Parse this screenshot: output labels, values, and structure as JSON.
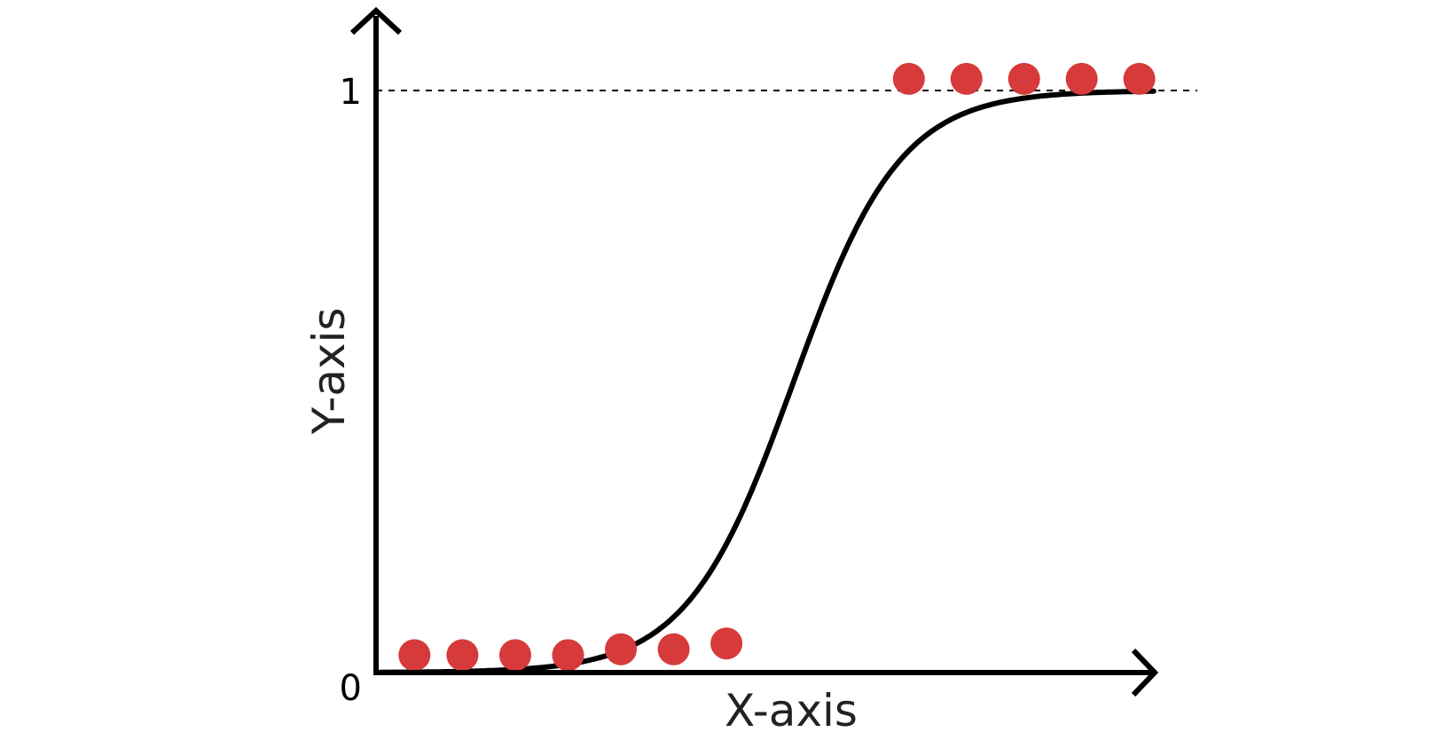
{
  "chart_data": {
    "type": "scatter",
    "title": "",
    "xlabel": "X-axis",
    "ylabel": "Y-axis",
    "xlim": [
      0,
      16
    ],
    "ylim": [
      0,
      1.1
    ],
    "yticks": [
      {
        "value": 0,
        "label": "0"
      },
      {
        "value": 1,
        "label": "1"
      }
    ],
    "reference_line": {
      "y": 1,
      "style": "dashed"
    },
    "point_color": "#d63a3a",
    "points": [
      {
        "x": 0.8,
        "y": 0.03
      },
      {
        "x": 1.8,
        "y": 0.03
      },
      {
        "x": 2.9,
        "y": 0.03
      },
      {
        "x": 4.0,
        "y": 0.03
      },
      {
        "x": 5.1,
        "y": 0.04
      },
      {
        "x": 6.2,
        "y": 0.04
      },
      {
        "x": 7.3,
        "y": 0.05
      },
      {
        "x": 11.1,
        "y": 1.02
      },
      {
        "x": 12.3,
        "y": 1.02
      },
      {
        "x": 13.5,
        "y": 1.02
      },
      {
        "x": 14.7,
        "y": 1.02
      },
      {
        "x": 15.9,
        "y": 1.02
      }
    ],
    "curve": {
      "type": "sigmoid",
      "midpoint": 8.7,
      "steepness": 0.9
    }
  }
}
